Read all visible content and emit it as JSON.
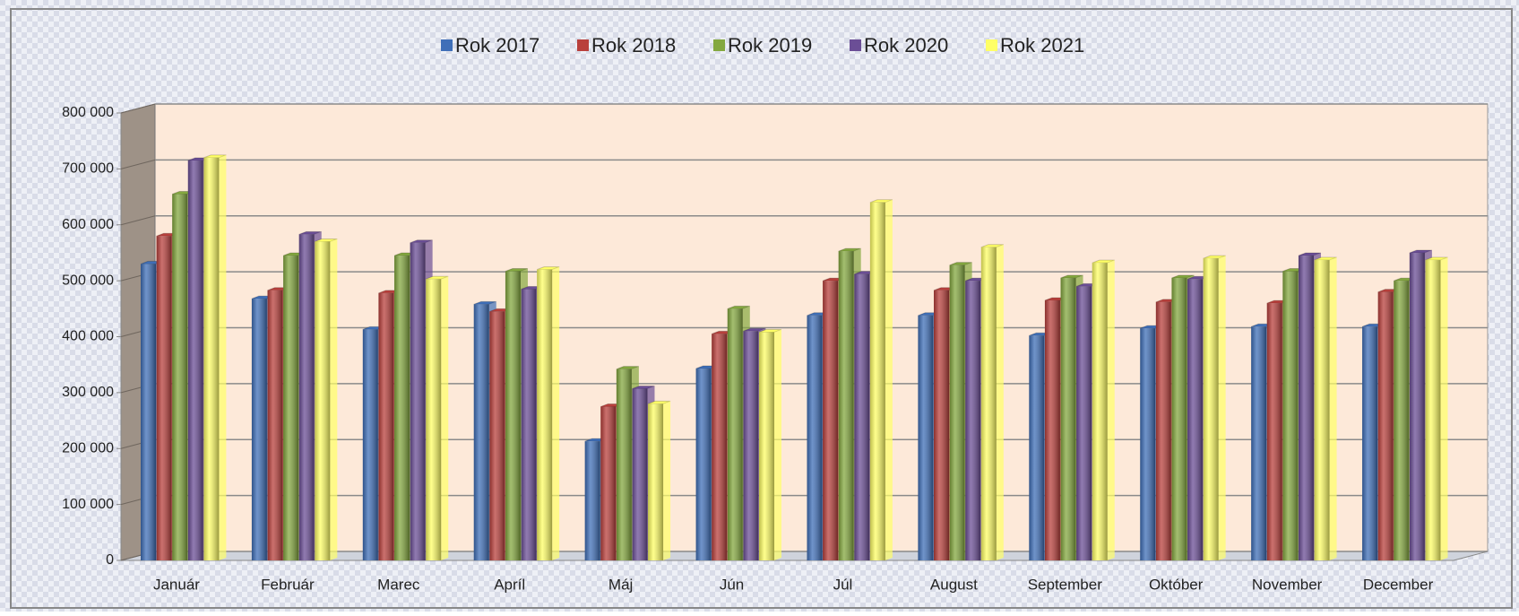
{
  "chart_data": {
    "type": "bar3d",
    "categories": [
      "Január",
      "Február",
      "Marec",
      "Apríl",
      "Máj",
      "Jún",
      "Júl",
      "August",
      "September",
      "Október",
      "November",
      "December"
    ],
    "series": [
      {
        "name": "Rok 2017",
        "color": "#3f6fb8",
        "values": [
          530000,
          468000,
          413000,
          458000,
          213000,
          343000,
          438000,
          438000,
          402000,
          415000,
          418000,
          418000
        ]
      },
      {
        "name": "Rok 2018",
        "color": "#b9403c",
        "values": [
          580000,
          483000,
          478000,
          445000,
          275000,
          405000,
          500000,
          483000,
          465000,
          462000,
          460000,
          480000
        ]
      },
      {
        "name": "Rok 2019",
        "color": "#84a83f",
        "values": [
          655000,
          545000,
          545000,
          517000,
          342000,
          450000,
          553000,
          528000,
          505000,
          505000,
          517000,
          500000
        ]
      },
      {
        "name": "Rok 2020",
        "color": "#6b4e96",
        "values": [
          715000,
          583000,
          568000,
          485000,
          307000,
          410000,
          512000,
          500000,
          490000,
          503000,
          545000,
          550000
        ]
      },
      {
        "name": "Rok 2021",
        "color": "#ffff66",
        "values": [
          720000,
          570000,
          503000,
          520000,
          280000,
          408000,
          640000,
          560000,
          532000,
          540000,
          537000,
          537000
        ]
      }
    ],
    "ylim": [
      0,
      800000
    ],
    "yticks": [
      0,
      {
        "value": 100000,
        "label": "100 000"
      },
      {
        "value": 200000,
        "label": "200 000"
      },
      {
        "value": 300000,
        "label": "300 000"
      },
      {
        "value": 400000,
        "label": "400 000"
      },
      {
        "value": 500000,
        "label": "500 000"
      },
      {
        "value": 600000,
        "label": "600 000"
      },
      {
        "value": 700000,
        "label": "700 000"
      },
      {
        "value": 800000,
        "label": "800 000"
      }
    ],
    "grid": true,
    "legend": "top"
  }
}
